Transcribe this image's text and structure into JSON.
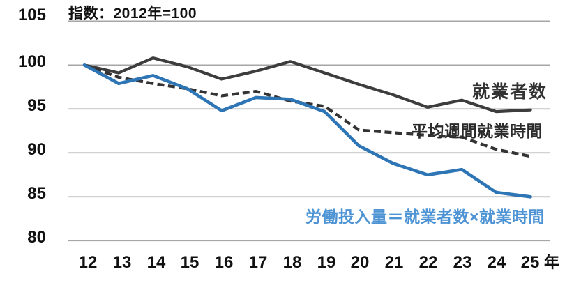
{
  "title": "指数：2012年=100",
  "colors": {
    "employed_line": "#3d3d3d",
    "hours_line": "#333333",
    "labor_input_line": "#2e75b6",
    "labor_input_label": "#4e94d4",
    "gridline": "#a6a6a6",
    "text": "#111111"
  },
  "chart_data": {
    "type": "line",
    "title": "指数：2012年=100",
    "x_unit": "年",
    "categories": [
      "12",
      "13",
      "14",
      "15",
      "16",
      "17",
      "18",
      "19",
      "20",
      "21",
      "22",
      "23",
      "24",
      "25"
    ],
    "ylim": [
      80,
      105
    ],
    "yticks": [
      105,
      100,
      95,
      90,
      85,
      80
    ],
    "ytick_labels": [
      "105",
      "100",
      "95",
      "90",
      "85",
      "80"
    ],
    "grid": "horizontal-only",
    "legend": "inline-annotations",
    "series": [
      {
        "name": "就業者数",
        "style": "solid",
        "color": "#3d3d3d",
        "label_color": "#333333",
        "width": 4.2,
        "values": [
          100,
          99.1,
          100.8,
          99.8,
          98.4,
          99.3,
          100.4,
          99.1,
          97.8,
          96.6,
          95.2,
          96.0,
          94.7,
          94.9
        ]
      },
      {
        "name": "平均週間就業時間",
        "style": "dashed",
        "color": "#333333",
        "label_color": "#2b2b2b",
        "width": 4.2,
        "values": [
          100,
          98.6,
          97.9,
          97.3,
          96.5,
          97.0,
          95.9,
          95.3,
          92.6,
          92.3,
          92.0,
          91.8,
          90.4,
          89.6
        ]
      },
      {
        "name": "労働投入量＝就業者数×就業時間",
        "style": "solid",
        "color": "#2e75b6",
        "label_color": "#4e94d4",
        "width": 4.6,
        "values": [
          100,
          97.9,
          98.8,
          97.3,
          94.8,
          96.3,
          96.1,
          94.7,
          90.8,
          88.8,
          87.5,
          88.1,
          85.5,
          85.0
        ]
      }
    ]
  }
}
